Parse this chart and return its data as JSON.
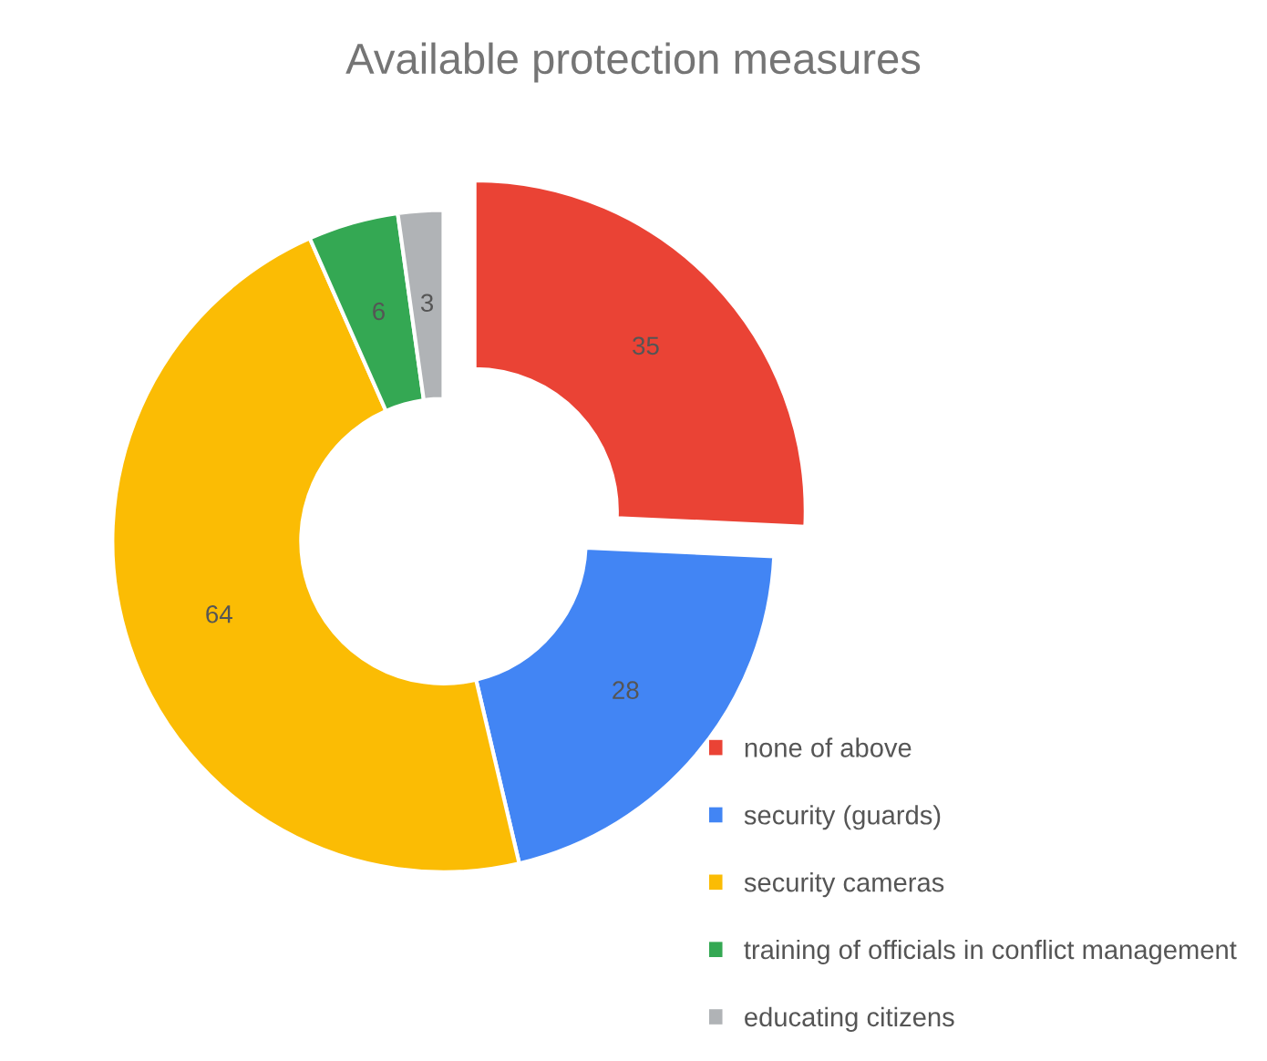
{
  "chart_data": {
    "type": "donut",
    "title": "Available protection measures",
    "categories": [
      "none of above",
      "security (guards)",
      "security cameras",
      "training of officials in conflict management",
      "educating citizens"
    ],
    "values": [
      35,
      28,
      64,
      6,
      3
    ],
    "colors": [
      "#ea4335",
      "#4285f4",
      "#fbbc04",
      "#34a853",
      "#b0b3b6"
    ],
    "data_labels": true,
    "legend": "bottom right"
  }
}
